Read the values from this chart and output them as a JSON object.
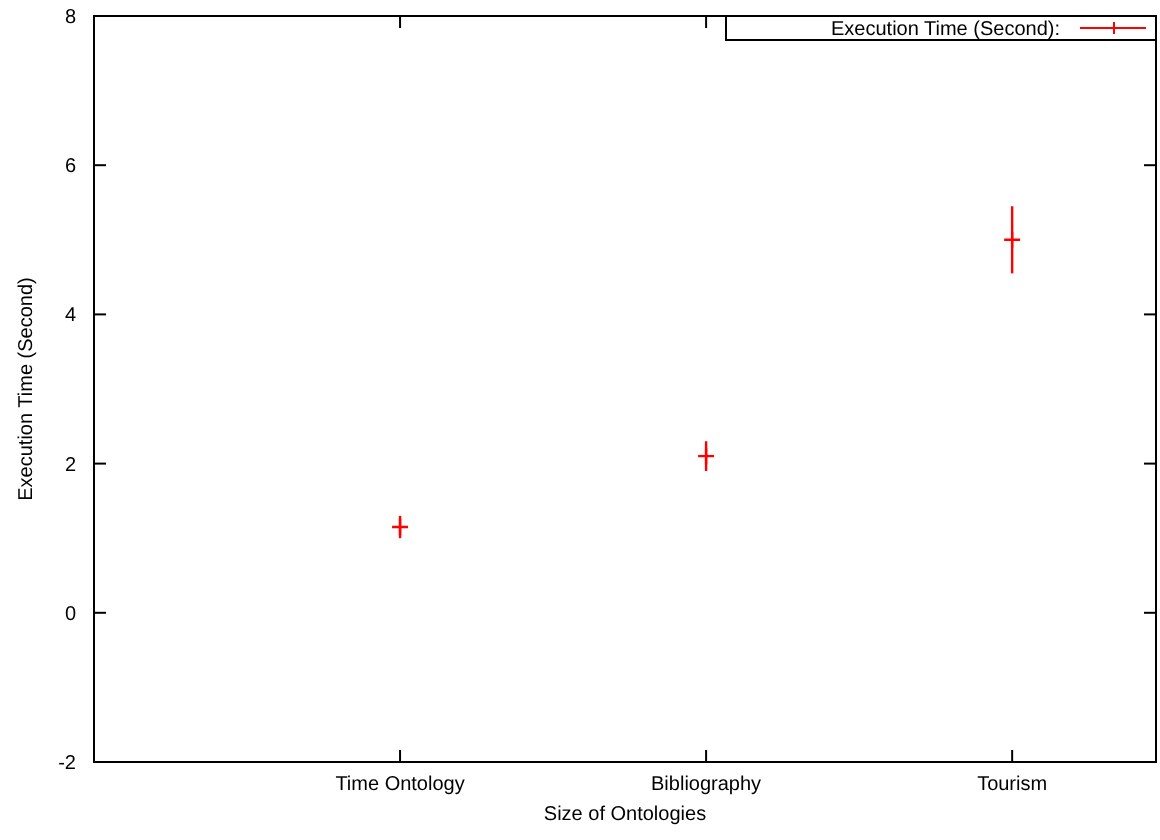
{
  "chart_data": {
    "type": "scatter",
    "xlabel": "Size of Ontologies",
    "ylabel": "Execution Time (Second)",
    "categories": [
      "Time Ontology",
      "Bibliography",
      "Tourism"
    ],
    "series": [
      {
        "name": "Execution Time (Second):",
        "color": "#ff0000",
        "values": [
          1.15,
          2.1,
          5.0
        ],
        "errors": [
          0.15,
          0.2,
          0.45
        ]
      }
    ],
    "ylim": [
      -2,
      8
    ],
    "yticks": [
      -2,
      0,
      2,
      4,
      6,
      8
    ],
    "grid": false,
    "legend": "top right",
    "marker": "cross"
  }
}
